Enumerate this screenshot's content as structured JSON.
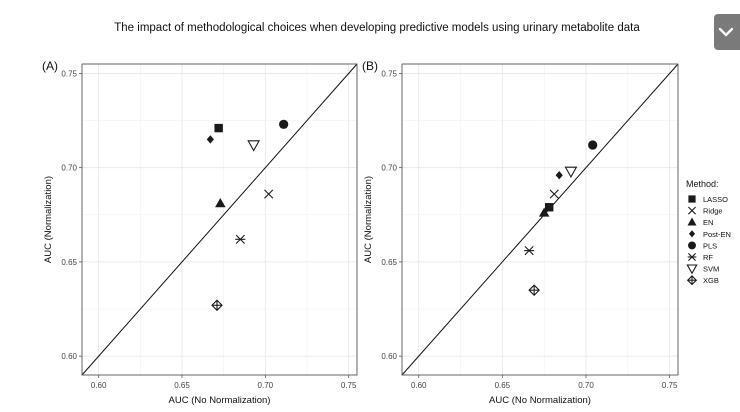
{
  "figure": {
    "title": "The impact of methodological choices when developing predictive models using urinary metabolite data",
    "legend_title": "Method:",
    "colors": {
      "marker": "#1a1a1a",
      "grid": "#e6e6e6",
      "axis": "#555555",
      "toggle": "#7a7a7a"
    }
  },
  "toggle": {
    "icon": "chevron-down-icon"
  },
  "chart_data": [
    {
      "type": "scatter",
      "panel_label": "(A)",
      "xlabel": "AUC (No Normalization)",
      "ylabel": "AUC (Normalization)",
      "xlim": [
        0.59,
        0.755
      ],
      "ylim": [
        0.59,
        0.755
      ],
      "xticks": [
        "0.60",
        "0.65",
        "0.70",
        "0.75"
      ],
      "yticks": [
        "0.60",
        "0.65",
        "0.70",
        "0.75"
      ],
      "reference_line": "y = x",
      "grid": true,
      "points": [
        {
          "method": "LASSO",
          "x": 0.672,
          "y": 0.721
        },
        {
          "method": "Ridge",
          "x": 0.702,
          "y": 0.686
        },
        {
          "method": "EN",
          "x": 0.673,
          "y": 0.681
        },
        {
          "method": "Post-EN",
          "x": 0.667,
          "y": 0.715
        },
        {
          "method": "PLS",
          "x": 0.711,
          "y": 0.723
        },
        {
          "method": "RF",
          "x": 0.685,
          "y": 0.662
        },
        {
          "method": "SVM",
          "x": 0.693,
          "y": 0.712
        },
        {
          "method": "XGB",
          "x": 0.671,
          "y": 0.627
        }
      ]
    },
    {
      "type": "scatter",
      "panel_label": "(B)",
      "xlabel": "AUC (No Normalization)",
      "ylabel": "AUC (Normalization)",
      "xlim": [
        0.59,
        0.755
      ],
      "ylim": [
        0.59,
        0.755
      ],
      "xticks": [
        "0.60",
        "0.65",
        "0.70",
        "0.75"
      ],
      "yticks": [
        "0.60",
        "0.65",
        "0.70",
        "0.75"
      ],
      "reference_line": "y = x",
      "grid": true,
      "points": [
        {
          "method": "LASSO",
          "x": 0.678,
          "y": 0.679
        },
        {
          "method": "Ridge",
          "x": 0.681,
          "y": 0.686
        },
        {
          "method": "EN",
          "x": 0.675,
          "y": 0.676
        },
        {
          "method": "Post-EN",
          "x": 0.684,
          "y": 0.696
        },
        {
          "method": "PLS",
          "x": 0.704,
          "y": 0.712
        },
        {
          "method": "RF",
          "x": 0.666,
          "y": 0.656
        },
        {
          "method": "SVM",
          "x": 0.691,
          "y": 0.698
        },
        {
          "method": "XGB",
          "x": 0.669,
          "y": 0.635
        }
      ]
    }
  ],
  "legend": [
    {
      "label": "LASSO",
      "shape": "square"
    },
    {
      "label": "Ridge",
      "shape": "x"
    },
    {
      "label": "EN",
      "shape": "triangle"
    },
    {
      "label": "Post-EN",
      "shape": "diamond"
    },
    {
      "label": "PLS",
      "shape": "circle"
    },
    {
      "label": "RF",
      "shape": "asterisk"
    },
    {
      "label": "SVM",
      "shape": "triangle-down"
    },
    {
      "label": "XGB",
      "shape": "circle-plus"
    }
  ]
}
